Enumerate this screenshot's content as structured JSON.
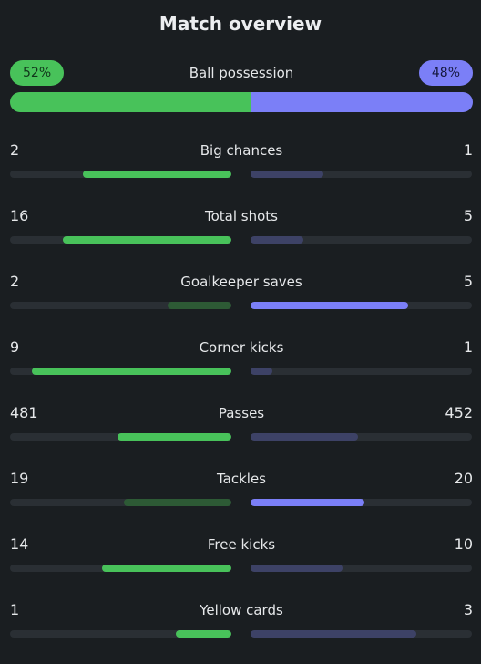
{
  "title": "Match overview",
  "colors": {
    "home_strong": "#48c25a",
    "home_weak": "#2d5a35",
    "away_strong": "#7b7ff7",
    "away_weak": "#3d4266",
    "track": "#2a2f34"
  },
  "possession": {
    "label": "Ball possession",
    "home_label": "52%",
    "away_label": "48%",
    "home": 52,
    "away": 48
  },
  "stats": [
    {
      "label": "Big chances",
      "home": "2",
      "away": "1",
      "home_fill": 0.67,
      "away_fill": 0.33,
      "home_leads": true,
      "away_leads": false
    },
    {
      "label": "Total shots",
      "home": "16",
      "away": "5",
      "home_fill": 0.76,
      "away_fill": 0.24,
      "home_leads": true,
      "away_leads": false
    },
    {
      "label": "Goalkeeper saves",
      "home": "2",
      "away": "5",
      "home_fill": 0.29,
      "away_fill": 0.71,
      "home_leads": false,
      "away_leads": true
    },
    {
      "label": "Corner kicks",
      "home": "9",
      "away": "1",
      "home_fill": 0.9,
      "away_fill": 0.1,
      "home_leads": true,
      "away_leads": false
    },
    {
      "label": "Passes",
      "home": "481",
      "away": "452",
      "home_fill": 0.515,
      "away_fill": 0.485,
      "home_leads": true,
      "away_leads": false
    },
    {
      "label": "Tackles",
      "home": "19",
      "away": "20",
      "home_fill": 0.487,
      "away_fill": 0.513,
      "home_leads": false,
      "away_leads": true
    },
    {
      "label": "Free kicks",
      "home": "14",
      "away": "10",
      "home_fill": 0.583,
      "away_fill": 0.417,
      "home_leads": true,
      "away_leads": false
    },
    {
      "label": "Yellow cards",
      "home": "1",
      "away": "3",
      "home_fill": 0.25,
      "away_fill": 0.75,
      "home_leads": true,
      "away_leads": false
    }
  ]
}
